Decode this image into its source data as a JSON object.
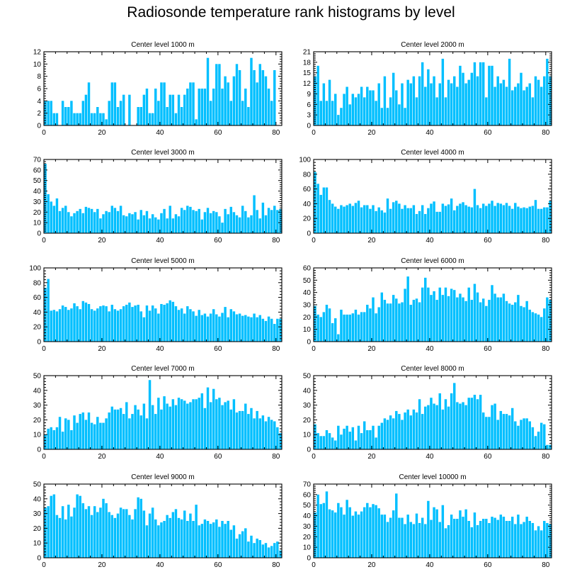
{
  "title": "Radiosonde temperature rank histograms by level",
  "colors": {
    "bar": "#00BFFF",
    "axis": "#000000",
    "background": "#FFFFFF"
  },
  "chart_data": [
    {
      "type": "bar",
      "title": "Center level 1000 m",
      "xlim": [
        0,
        82
      ],
      "ylim": [
        0,
        12
      ],
      "xticks": [
        0,
        20,
        40,
        60,
        80
      ],
      "yticks": [
        0,
        2,
        4,
        6,
        8,
        10,
        12
      ],
      "values": [
        4,
        4,
        4,
        2,
        2,
        0,
        4,
        3,
        3,
        4,
        2,
        2,
        2,
        4,
        5,
        7,
        2,
        2,
        3,
        2,
        2,
        1,
        4,
        7,
        7,
        3,
        4,
        5,
        0,
        5,
        0,
        0,
        3,
        3,
        5,
        6,
        2,
        2,
        6,
        4,
        7,
        7,
        3,
        5,
        5,
        2,
        5,
        3,
        5,
        6,
        7,
        7,
        1,
        6,
        6,
        6,
        11,
        4,
        6,
        10,
        10,
        6,
        8,
        7,
        4,
        8,
        10,
        9,
        4,
        6,
        3,
        11,
        9,
        7,
        10,
        9,
        8,
        6,
        4,
        9,
        0,
        0
      ]
    },
    {
      "type": "bar",
      "title": "Center level 2000 m",
      "xlim": [
        0,
        82
      ],
      "ylim": [
        0,
        21
      ],
      "xticks": [
        0,
        20,
        40,
        60,
        80
      ],
      "yticks": [
        0,
        3,
        6,
        9,
        12,
        15,
        18,
        21
      ],
      "values": [
        14,
        17,
        7,
        12,
        7,
        13,
        7,
        9,
        3,
        5,
        9,
        11,
        6,
        9,
        8,
        9,
        11,
        8,
        11,
        10,
        10,
        7,
        12,
        5,
        14,
        5,
        8,
        15,
        10,
        6,
        12,
        5,
        13,
        12,
        14,
        8,
        14,
        18,
        11,
        16,
        12,
        14,
        8,
        12,
        19,
        8,
        13,
        12,
        14,
        11,
        17,
        15,
        12,
        13,
        15,
        18,
        14,
        18,
        18,
        8,
        17,
        17,
        11,
        14,
        12,
        13,
        11,
        19,
        10,
        11,
        12,
        15,
        10,
        11,
        12,
        8,
        14,
        13,
        11,
        14,
        19,
        14
      ]
    },
    {
      "type": "bar",
      "title": "Center level 3000 m",
      "xlim": [
        0,
        82
      ],
      "ylim": [
        0,
        70
      ],
      "xticks": [
        0,
        20,
        40,
        60,
        80
      ],
      "yticks": [
        0,
        10,
        20,
        30,
        40,
        50,
        60,
        70
      ],
      "values": [
        66,
        37,
        30,
        26,
        33,
        21,
        24,
        26,
        20,
        16,
        19,
        21,
        23,
        19,
        25,
        24,
        23,
        20,
        23,
        14,
        18,
        21,
        20,
        26,
        24,
        21,
        26,
        17,
        16,
        19,
        18,
        20,
        13,
        22,
        17,
        21,
        14,
        18,
        15,
        13,
        19,
        23,
        14,
        26,
        14,
        18,
        16,
        24,
        22,
        26,
        25,
        22,
        21,
        23,
        13,
        20,
        24,
        19,
        21,
        20,
        16,
        10,
        23,
        18,
        25,
        20,
        17,
        15,
        26,
        21,
        15,
        17,
        36,
        22,
        14,
        29,
        17,
        24,
        22,
        26,
        22,
        23
      ]
    },
    {
      "type": "bar",
      "title": "Center level 4000 m",
      "xlim": [
        0,
        82
      ],
      "ylim": [
        0,
        100
      ],
      "xticks": [
        0,
        20,
        40,
        60,
        80
      ],
      "yticks": [
        0,
        20,
        40,
        60,
        80,
        100
      ],
      "values": [
        83,
        67,
        52,
        62,
        62,
        45,
        40,
        36,
        33,
        38,
        36,
        38,
        40,
        37,
        41,
        44,
        35,
        38,
        38,
        33,
        38,
        30,
        35,
        31,
        28,
        47,
        33,
        42,
        44,
        40,
        33,
        38,
        34,
        34,
        38,
        26,
        30,
        38,
        26,
        34,
        40,
        43,
        29,
        29,
        40,
        37,
        39,
        47,
        31,
        37,
        40,
        42,
        38,
        36,
        35,
        60,
        38,
        34,
        40,
        37,
        40,
        44,
        37,
        41,
        40,
        38,
        41,
        37,
        33,
        41,
        36,
        34,
        35,
        34,
        36,
        37,
        45,
        33,
        33,
        35,
        35,
        44
      ]
    },
    {
      "type": "bar",
      "title": "Center level 5000 m",
      "xlim": [
        0,
        82
      ],
      "ylim": [
        0,
        100
      ],
      "xticks": [
        0,
        20,
        40,
        60,
        80
      ],
      "yticks": [
        0,
        20,
        40,
        60,
        80,
        100
      ],
      "values": [
        73,
        85,
        42,
        43,
        41,
        44,
        49,
        47,
        43,
        45,
        52,
        48,
        44,
        55,
        53,
        51,
        44,
        42,
        45,
        48,
        49,
        48,
        41,
        50,
        44,
        42,
        44,
        48,
        50,
        53,
        47,
        49,
        50,
        41,
        33,
        49,
        42,
        49,
        45,
        38,
        51,
        50,
        52,
        56,
        54,
        48,
        43,
        45,
        38,
        48,
        44,
        41,
        35,
        43,
        36,
        38,
        34,
        38,
        44,
        37,
        34,
        39,
        47,
        33,
        44,
        41,
        37,
        38,
        35,
        36,
        34,
        33,
        38,
        33,
        36,
        31,
        28,
        34,
        31,
        24,
        31,
        31
      ]
    },
    {
      "type": "bar",
      "title": "Center level 6000 m",
      "xlim": [
        0,
        82
      ],
      "ylim": [
        0,
        60
      ],
      "xticks": [
        0,
        20,
        40,
        60,
        80
      ],
      "yticks": [
        0,
        10,
        20,
        30,
        40,
        50,
        60
      ],
      "values": [
        29,
        22,
        20,
        24,
        30,
        27,
        15,
        19,
        6,
        26,
        22,
        22,
        22,
        23,
        26,
        22,
        24,
        24,
        30,
        27,
        36,
        23,
        28,
        40,
        34,
        31,
        31,
        38,
        35,
        31,
        32,
        43,
        53,
        30,
        34,
        35,
        32,
        44,
        52,
        44,
        38,
        41,
        34,
        44,
        38,
        44,
        37,
        43,
        42,
        36,
        39,
        36,
        33,
        44,
        34,
        47,
        40,
        32,
        35,
        29,
        34,
        46,
        39,
        36,
        36,
        39,
        33,
        31,
        30,
        32,
        38,
        29,
        28,
        33,
        26,
        24,
        23,
        22,
        20,
        27,
        36,
        34
      ]
    },
    {
      "type": "bar",
      "title": "Center level 7000 m",
      "xlim": [
        0,
        82
      ],
      "ylim": [
        0,
        50
      ],
      "xticks": [
        0,
        20,
        40,
        60,
        80
      ],
      "yticks": [
        0,
        10,
        20,
        30,
        40,
        50
      ],
      "values": [
        10,
        14,
        15,
        13,
        15,
        22,
        12,
        21,
        20,
        13,
        23,
        18,
        24,
        25,
        20,
        25,
        18,
        17,
        22,
        18,
        18,
        21,
        25,
        29,
        27,
        27,
        28,
        24,
        32,
        21,
        24,
        30,
        27,
        23,
        31,
        21,
        47,
        30,
        24,
        35,
        27,
        36,
        31,
        29,
        34,
        30,
        35,
        34,
        33,
        31,
        32,
        34,
        34,
        35,
        38,
        28,
        42,
        32,
        41,
        34,
        35,
        30,
        32,
        33,
        27,
        34,
        25,
        26,
        26,
        31,
        24,
        28,
        21,
        26,
        21,
        23,
        19,
        22,
        20,
        19,
        15,
        11
      ]
    },
    {
      "type": "bar",
      "title": "Center level 8000 m",
      "xlim": [
        0,
        82
      ],
      "ylim": [
        0,
        50
      ],
      "xticks": [
        0,
        20,
        40,
        60,
        80
      ],
      "yticks": [
        0,
        10,
        20,
        30,
        40,
        50
      ],
      "values": [
        17,
        11,
        9,
        9,
        13,
        11,
        8,
        6,
        16,
        10,
        14,
        16,
        12,
        15,
        6,
        16,
        11,
        19,
        13,
        13,
        16,
        8,
        16,
        18,
        21,
        20,
        23,
        21,
        26,
        24,
        20,
        25,
        27,
        23,
        27,
        25,
        34,
        24,
        29,
        30,
        35,
        31,
        30,
        38,
        27,
        34,
        29,
        38,
        45,
        32,
        31,
        32,
        30,
        35,
        35,
        37,
        34,
        37,
        25,
        22,
        22,
        30,
        31,
        20,
        26,
        24,
        24,
        23,
        28,
        19,
        16,
        20,
        21,
        21,
        19,
        15,
        9,
        12,
        18,
        17,
        3,
        3
      ]
    },
    {
      "type": "bar",
      "title": "Center level 9000 m",
      "xlim": [
        0,
        82
      ],
      "ylim": [
        0,
        50
      ],
      "xticks": [
        0,
        20,
        40,
        60,
        80
      ],
      "yticks": [
        0,
        10,
        20,
        30,
        40,
        50
      ],
      "values": [
        34,
        35,
        42,
        43,
        29,
        27,
        35,
        26,
        36,
        28,
        34,
        43,
        42,
        37,
        33,
        35,
        29,
        35,
        31,
        34,
        40,
        37,
        31,
        29,
        27,
        30,
        34,
        33,
        33,
        29,
        26,
        33,
        41,
        40,
        32,
        22,
        30,
        34,
        26,
        22,
        24,
        25,
        29,
        27,
        31,
        33,
        27,
        26,
        32,
        25,
        30,
        25,
        36,
        22,
        23,
        26,
        25,
        23,
        24,
        26,
        21,
        25,
        23,
        25,
        19,
        22,
        13,
        16,
        18,
        20,
        11,
        15,
        10,
        13,
        12,
        9,
        10,
        7,
        8,
        10,
        11,
        5
      ]
    },
    {
      "type": "bar",
      "title": "Center level 10000 m",
      "xlim": [
        0,
        82
      ],
      "ylim": [
        0,
        70
      ],
      "xticks": [
        0,
        20,
        40,
        60,
        80
      ],
      "yticks": [
        0,
        10,
        20,
        30,
        40,
        50,
        60,
        70
      ],
      "values": [
        43,
        60,
        51,
        52,
        63,
        46,
        45,
        43,
        52,
        48,
        41,
        55,
        48,
        40,
        44,
        41,
        44,
        48,
        52,
        48,
        51,
        50,
        47,
        41,
        41,
        34,
        38,
        45,
        61,
        38,
        38,
        32,
        41,
        34,
        32,
        42,
        33,
        38,
        32,
        54,
        36,
        48,
        46,
        34,
        50,
        28,
        31,
        41,
        37,
        37,
        45,
        39,
        46,
        35,
        29,
        43,
        31,
        35,
        37,
        37,
        33,
        39,
        38,
        36,
        41,
        39,
        35,
        35,
        39,
        32,
        41,
        32,
        34,
        39,
        35,
        33,
        26,
        30,
        26,
        35,
        33,
        32
      ]
    }
  ]
}
